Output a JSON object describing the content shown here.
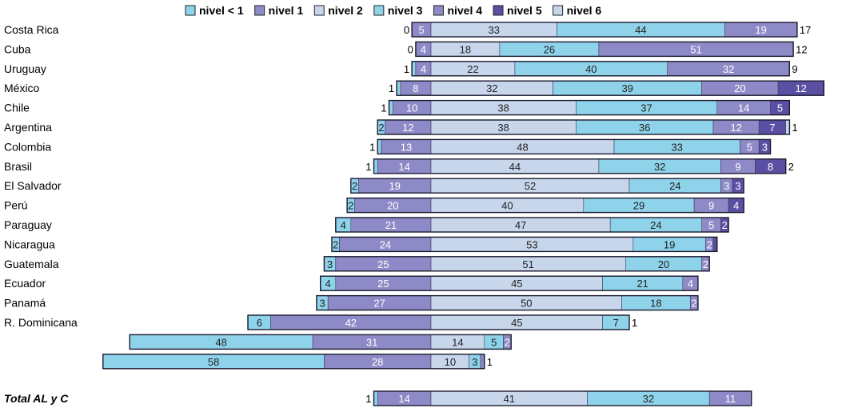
{
  "chart_data": {
    "type": "bar",
    "orientation": "horizontal",
    "stacked": "diverging",
    "legend_position": "top",
    "legend": [
      {
        "name": "nivel < 1",
        "color": "#8fd3ea"
      },
      {
        "name": "nivel 1",
        "color": "#8e8ac7"
      },
      {
        "name": "nivel 2",
        "color": "#c8d6ec"
      },
      {
        "name": "nivel 3",
        "color": "#8fd3ea"
      },
      {
        "name": "nivel 4",
        "color": "#8e8ac7"
      },
      {
        "name": "nivel 5",
        "color": "#5b4fa3"
      },
      {
        "name": "nivel 6",
        "color": "#c8d6ec"
      }
    ],
    "rows": [
      {
        "label": "Costa Rica",
        "values": [
          0,
          5,
          33,
          44,
          19,
          0,
          0
        ],
        "trailing": "17"
      },
      {
        "label": "Cuba",
        "values": [
          0,
          4,
          18,
          26,
          51,
          0,
          0
        ],
        "trailing": "12"
      },
      {
        "label": "Uruguay",
        "values": [
          1,
          4,
          22,
          40,
          32,
          0,
          0
        ],
        "trailing": "9"
      },
      {
        "label": "México",
        "values": [
          1,
          8,
          32,
          39,
          20,
          12,
          0
        ],
        "trailing": ""
      },
      {
        "label": "Chile",
        "values": [
          1,
          10,
          38,
          37,
          14,
          5,
          0
        ],
        "trailing": ""
      },
      {
        "label": "Argentina",
        "values": [
          2,
          12,
          38,
          36,
          12,
          7,
          1
        ],
        "trailing": "1"
      },
      {
        "label": "Colombia",
        "values": [
          1,
          13,
          48,
          33,
          5,
          3,
          0
        ],
        "trailing": ""
      },
      {
        "label": "Brasil",
        "values": [
          1,
          14,
          44,
          32,
          9,
          8,
          0
        ],
        "trailing": "2"
      },
      {
        "label": "El Salvador",
        "values": [
          2,
          19,
          52,
          24,
          3,
          3,
          0
        ],
        "trailing": ""
      },
      {
        "label": "Perú",
        "values": [
          2,
          20,
          40,
          29,
          9,
          4,
          0
        ],
        "trailing": ""
      },
      {
        "label": "Paraguay",
        "values": [
          4,
          21,
          47,
          24,
          5,
          2,
          0
        ],
        "trailing": ""
      },
      {
        "label": "Nicaragua",
        "values": [
          2,
          24,
          53,
          19,
          2,
          1,
          0
        ],
        "trailing": ""
      },
      {
        "label": "Guatemala",
        "values": [
          3,
          25,
          51,
          20,
          2,
          0,
          0
        ],
        "trailing": ""
      },
      {
        "label": "Ecuador",
        "values": [
          4,
          25,
          45,
          21,
          4,
          0,
          0
        ],
        "trailing": ""
      },
      {
        "label": "Panamá",
        "values": [
          3,
          27,
          50,
          18,
          2,
          0,
          0
        ],
        "trailing": ""
      },
      {
        "label": "R. Dominicana",
        "values": [
          6,
          42,
          45,
          7,
          0,
          0,
          0
        ],
        "trailing": "1"
      },
      {
        "label": "",
        "values": [
          48,
          31,
          14,
          5,
          2,
          0,
          0
        ],
        "trailing": ""
      },
      {
        "label": "",
        "values": [
          58,
          28,
          10,
          3,
          1,
          0,
          0
        ],
        "trailing": "1"
      }
    ],
    "total": {
      "label": "Total  AL y C",
      "values": [
        1,
        14,
        41,
        32,
        11,
        0,
        0
      ],
      "trailing": ""
    }
  }
}
